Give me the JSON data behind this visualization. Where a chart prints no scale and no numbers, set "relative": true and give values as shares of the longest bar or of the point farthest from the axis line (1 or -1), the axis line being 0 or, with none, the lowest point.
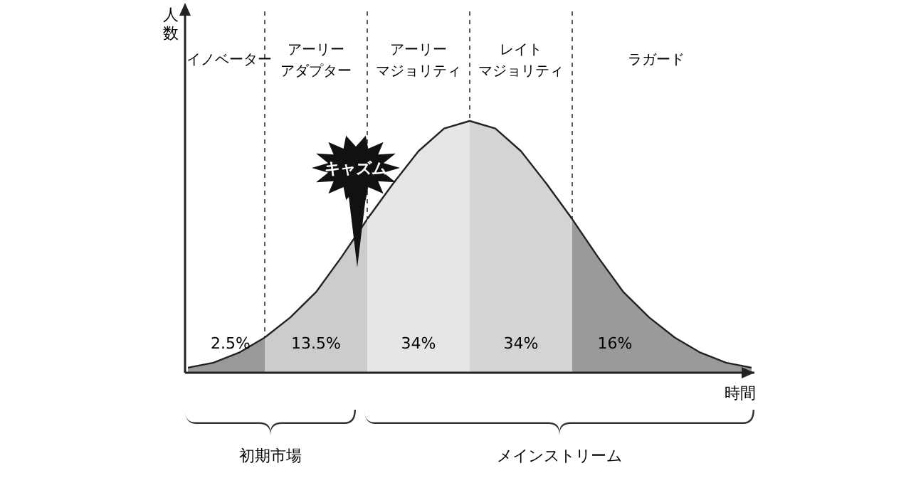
{
  "chart_data": {
    "type": "area",
    "relative": true,
    "xlabel": "時間",
    "grid": "x",
    "categories": [
      null,
      null,
      null,
      null,
      null,
      null,
      null,
      null,
      null,
      null,
      null,
      null,
      null,
      null,
      null,
      null,
      null,
      null,
      null,
      null,
      null,
      null,
      null
    ],
    "series": [
      {
        "color": "#999999",
        "values": [
          0.02,
          0.04,
          0.08,
          0.14,
          null,
          null,
          null,
          null,
          null,
          null,
          null,
          null,
          null,
          null,
          null,
          null,
          null,
          null,
          null,
          null,
          null,
          null,
          null
        ]
      },
      {
        "color": "#cccccc",
        "values": [
          null,
          null,
          null,
          0.14,
          0.22,
          0.32,
          0.46,
          0.61,
          null,
          null,
          null,
          null,
          null,
          null,
          null,
          null,
          null,
          null,
          null,
          null,
          null,
          null,
          null
        ]
      },
      {
        "color": "#e6e6e6",
        "values": [
          null,
          null,
          null,
          null,
          null,
          null,
          null,
          0.61,
          0.75,
          0.88,
          0.97,
          1,
          null,
          null,
          null,
          null,
          null,
          null,
          null,
          null,
          null,
          null,
          null
        ]
      },
      {
        "color": "#d4d4d4",
        "values": [
          null,
          null,
          null,
          null,
          null,
          null,
          null,
          null,
          null,
          null,
          null,
          1,
          0.97,
          0.88,
          0.75,
          0.61,
          null,
          null,
          null,
          null,
          null,
          null,
          null
        ]
      },
      {
        "color": "#9a9a9a",
        "values": [
          null,
          null,
          null,
          null,
          null,
          null,
          null,
          null,
          null,
          null,
          null,
          null,
          null,
          null,
          null,
          0.61,
          0.46,
          0.32,
          0.22,
          0.14,
          0.08,
          0.04,
          0.02
        ]
      }
    ],
    "annotations": [
      "イノベーター",
      "アーリーアダプター",
      "アーリーマジョリティ",
      "レイトマジョリティ",
      "ラガード",
      "2.5%",
      "13.5%",
      "34%",
      "34%",
      "16%",
      "キャズム",
      "初期市場",
      "メインストリーム",
      "人数"
    ]
  }
}
